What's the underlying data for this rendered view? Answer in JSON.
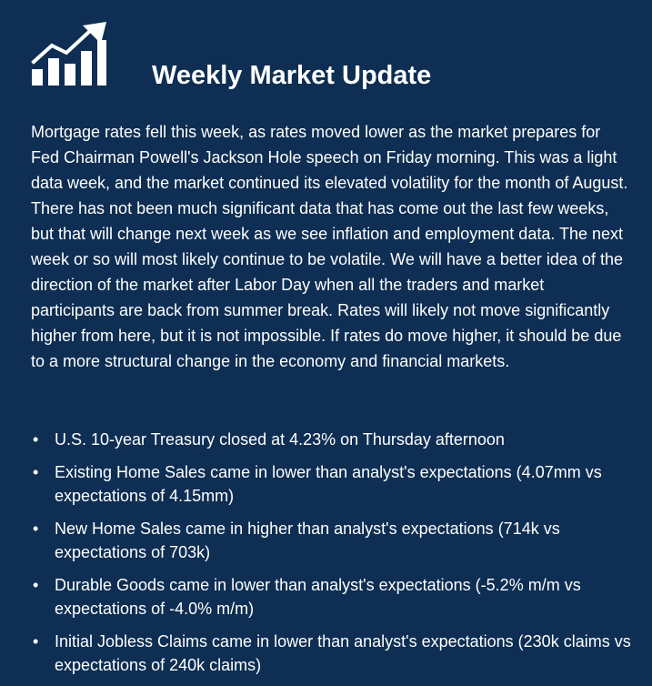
{
  "header": {
    "icon": "growth-chart-icon",
    "title": "Weekly Market Update"
  },
  "intro": "Mortgage rates fell this week, as rates moved lower as the market prepares for Fed Chairman Powell's Jackson Hole speech on Friday morning. This was a light data week, and the market continued its elevated volatility for the month of August. There has not been much significant data that has come out the last few weeks, but that will change next week as we see inflation and employment data. The next week or so will most likely continue to be volatile. We will have a better idea of the direction of the market after Labor Day when all the traders and market participants are back from summer break. Rates will likely not move significantly higher from here, but it is not impossible. If rates do move higher, it should be due to a more structural change in the economy and financial markets.",
  "bullet_marker": "•",
  "bullets": [
    "U.S. 10-year Treasury closed at 4.23% on Thursday afternoon",
    "Existing Home Sales came in lower than analyst's expectations (4.07mm vs expectations of 4.15mm)",
    "New Home Sales came in higher than analyst's expectations (714k vs expectations of 703k)",
    "Durable Goods came in lower than analyst's expectations (-5.2% m/m vs expectations of -4.0% m/m)",
    "Initial Jobless Claims came in lower than analyst's expectations (230k claims vs expectations of 240k claims)"
  ],
  "colors": {
    "background": "#0e2e53",
    "text": "#ffffff"
  }
}
